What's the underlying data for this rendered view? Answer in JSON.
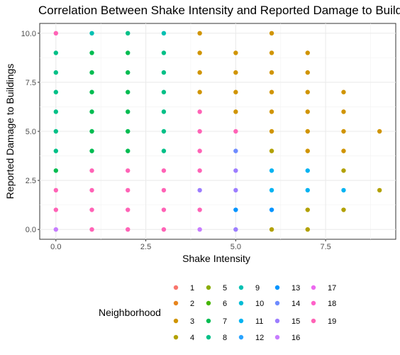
{
  "chart_data": {
    "type": "scatter",
    "title": "Correlation Between Shake Intensity and Reported Damage to Buildings",
    "xlabel": "Shake Intensity",
    "ylabel": "Reported Damage to Buildings",
    "xlim": [
      -0.45,
      9.45
    ],
    "ylim": [
      -0.5,
      10.5
    ],
    "x_ticks": [
      0.0,
      2.5,
      5.0,
      7.5
    ],
    "x_tick_labels": [
      "0.0",
      "2.5",
      "5.0",
      "7.5"
    ],
    "y_ticks": [
      0.0,
      2.5,
      5.0,
      7.5,
      10.0
    ],
    "y_tick_labels": [
      "0.0",
      "2.5",
      "5.0",
      "7.5",
      "10.0"
    ],
    "grid": true,
    "legend": {
      "title": "Neighborhood",
      "placement": "bottom",
      "entries": [
        {
          "label": "1",
          "color": "#F8766D"
        },
        {
          "label": "2",
          "color": "#E7851E"
        },
        {
          "label": "3",
          "color": "#D09400"
        },
        {
          "label": "4",
          "color": "#B2A100"
        },
        {
          "label": "5",
          "color": "#89AC00"
        },
        {
          "label": "6",
          "color": "#45B500"
        },
        {
          "label": "7",
          "color": "#00BC51"
        },
        {
          "label": "8",
          "color": "#00C087"
        },
        {
          "label": "9",
          "color": "#00C0B2"
        },
        {
          "label": "10",
          "color": "#00BCD6"
        },
        {
          "label": "11",
          "color": "#00B3F2"
        },
        {
          "label": "12",
          "color": "#29A3FF"
        },
        {
          "label": "13",
          "color": "#0094FF"
        },
        {
          "label": "14",
          "color": "#6E8BFF"
        },
        {
          "label": "15",
          "color": "#9C7DFF"
        },
        {
          "label": "16",
          "color": "#C77CFF"
        },
        {
          "label": "17",
          "color": "#EC69EF"
        },
        {
          "label": "18",
          "color": "#FF61C9"
        },
        {
          "label": "19",
          "color": "#FF63B6"
        }
      ]
    },
    "points": [
      {
        "x": 0,
        "y": 10,
        "color": "#FF63B6"
      },
      {
        "x": 0,
        "y": 9,
        "color": "#00C087"
      },
      {
        "x": 0,
        "y": 8,
        "color": "#00C087"
      },
      {
        "x": 0,
        "y": 7,
        "color": "#00C087"
      },
      {
        "x": 0,
        "y": 6,
        "color": "#00C087"
      },
      {
        "x": 0,
        "y": 5,
        "color": "#00C087"
      },
      {
        "x": 0,
        "y": 4,
        "color": "#00C087"
      },
      {
        "x": 0,
        "y": 3,
        "color": "#00BC51"
      },
      {
        "x": 0,
        "y": 2,
        "color": "#FF63B6"
      },
      {
        "x": 0,
        "y": 1,
        "color": "#FF63B6"
      },
      {
        "x": 0,
        "y": 0,
        "color": "#C77CFF"
      },
      {
        "x": 1,
        "y": 10,
        "color": "#00C0B2"
      },
      {
        "x": 1,
        "y": 9,
        "color": "#00BC51"
      },
      {
        "x": 1,
        "y": 8,
        "color": "#00BC51"
      },
      {
        "x": 1,
        "y": 7,
        "color": "#00BC51"
      },
      {
        "x": 1,
        "y": 6,
        "color": "#00BC51"
      },
      {
        "x": 1,
        "y": 5,
        "color": "#00BC51"
      },
      {
        "x": 1,
        "y": 4,
        "color": "#00BC51"
      },
      {
        "x": 1,
        "y": 3,
        "color": "#FF63B6"
      },
      {
        "x": 1,
        "y": 2,
        "color": "#FF63B6"
      },
      {
        "x": 1,
        "y": 1,
        "color": "#FF63B6"
      },
      {
        "x": 1,
        "y": 0,
        "color": "#FF63B6"
      },
      {
        "x": 2,
        "y": 10,
        "color": "#00C087"
      },
      {
        "x": 2,
        "y": 9,
        "color": "#00BC51"
      },
      {
        "x": 2,
        "y": 8,
        "color": "#00BC51"
      },
      {
        "x": 2,
        "y": 7,
        "color": "#00BC51"
      },
      {
        "x": 2,
        "y": 6,
        "color": "#00BC51"
      },
      {
        "x": 2,
        "y": 5,
        "color": "#00BC51"
      },
      {
        "x": 2,
        "y": 4,
        "color": "#00BC51"
      },
      {
        "x": 2,
        "y": 3,
        "color": "#FF63B6"
      },
      {
        "x": 2,
        "y": 2,
        "color": "#FF63B6"
      },
      {
        "x": 2,
        "y": 1,
        "color": "#FF63B6"
      },
      {
        "x": 2,
        "y": 0,
        "color": "#FF63B6"
      },
      {
        "x": 3,
        "y": 10,
        "color": "#00C0B2"
      },
      {
        "x": 3,
        "y": 9,
        "color": "#00C087"
      },
      {
        "x": 3,
        "y": 8,
        "color": "#00C087"
      },
      {
        "x": 3,
        "y": 7,
        "color": "#00C087"
      },
      {
        "x": 3,
        "y": 6,
        "color": "#00C087"
      },
      {
        "x": 3,
        "y": 5,
        "color": "#00C087"
      },
      {
        "x": 3,
        "y": 4,
        "color": "#00C087"
      },
      {
        "x": 3,
        "y": 3,
        "color": "#FF63B6"
      },
      {
        "x": 3,
        "y": 2,
        "color": "#FF63B6"
      },
      {
        "x": 3,
        "y": 1,
        "color": "#FF63B6"
      },
      {
        "x": 3,
        "y": 0,
        "color": "#FF63B6"
      },
      {
        "x": 4,
        "y": 10,
        "color": "#D09400"
      },
      {
        "x": 4,
        "y": 9,
        "color": "#D09400"
      },
      {
        "x": 4,
        "y": 8,
        "color": "#D09400"
      },
      {
        "x": 4,
        "y": 7,
        "color": "#D09400"
      },
      {
        "x": 4,
        "y": 6,
        "color": "#FF63B6"
      },
      {
        "x": 4,
        "y": 5,
        "color": "#FF63B6"
      },
      {
        "x": 4,
        "y": 4,
        "color": "#FF63B6"
      },
      {
        "x": 4,
        "y": 3,
        "color": "#FF63B6"
      },
      {
        "x": 4,
        "y": 2,
        "color": "#9C7DFF"
      },
      {
        "x": 4,
        "y": 1,
        "color": "#FF63B6"
      },
      {
        "x": 4,
        "y": 0,
        "color": "#C77CFF"
      },
      {
        "x": 5,
        "y": 9,
        "color": "#D09400"
      },
      {
        "x": 5,
        "y": 8,
        "color": "#D09400"
      },
      {
        "x": 5,
        "y": 7,
        "color": "#D09400"
      },
      {
        "x": 5,
        "y": 6,
        "color": "#D09400"
      },
      {
        "x": 5,
        "y": 5,
        "color": "#FF63B6"
      },
      {
        "x": 5,
        "y": 4,
        "color": "#6E8BFF"
      },
      {
        "x": 5,
        "y": 3,
        "color": "#9C7DFF"
      },
      {
        "x": 5,
        "y": 2,
        "color": "#9C7DFF"
      },
      {
        "x": 5,
        "y": 1,
        "color": "#0094FF"
      },
      {
        "x": 5,
        "y": 0,
        "color": "#9C7DFF"
      },
      {
        "x": 6,
        "y": 10,
        "color": "#D09400"
      },
      {
        "x": 6,
        "y": 9,
        "color": "#D09400"
      },
      {
        "x": 6,
        "y": 8,
        "color": "#D09400"
      },
      {
        "x": 6,
        "y": 7,
        "color": "#D09400"
      },
      {
        "x": 6,
        "y": 6,
        "color": "#D09400"
      },
      {
        "x": 6,
        "y": 5,
        "color": "#D09400"
      },
      {
        "x": 6,
        "y": 4,
        "color": "#B2A100"
      },
      {
        "x": 6,
        "y": 3,
        "color": "#00B3F2"
      },
      {
        "x": 6,
        "y": 2,
        "color": "#00B3F2"
      },
      {
        "x": 6,
        "y": 1,
        "color": "#0094FF"
      },
      {
        "x": 6,
        "y": 0,
        "color": "#B2A100"
      },
      {
        "x": 7,
        "y": 9,
        "color": "#D09400"
      },
      {
        "x": 7,
        "y": 8,
        "color": "#D09400"
      },
      {
        "x": 7,
        "y": 7,
        "color": "#D09400"
      },
      {
        "x": 7,
        "y": 6,
        "color": "#D09400"
      },
      {
        "x": 7,
        "y": 5,
        "color": "#D09400"
      },
      {
        "x": 7,
        "y": 4,
        "color": "#D09400"
      },
      {
        "x": 7,
        "y": 3,
        "color": "#00B3F2"
      },
      {
        "x": 7,
        "y": 2,
        "color": "#00B3F2"
      },
      {
        "x": 7,
        "y": 1,
        "color": "#B2A100"
      },
      {
        "x": 7,
        "y": 0,
        "color": "#B2A100"
      },
      {
        "x": 8,
        "y": 7,
        "color": "#D09400"
      },
      {
        "x": 8,
        "y": 6,
        "color": "#D09400"
      },
      {
        "x": 8,
        "y": 5,
        "color": "#D09400"
      },
      {
        "x": 8,
        "y": 4,
        "color": "#D09400"
      },
      {
        "x": 8,
        "y": 3,
        "color": "#B2A100"
      },
      {
        "x": 8,
        "y": 2,
        "color": "#00B3F2"
      },
      {
        "x": 8,
        "y": 1,
        "color": "#B2A100"
      },
      {
        "x": 9,
        "y": 5,
        "color": "#D09400"
      },
      {
        "x": 9,
        "y": 2,
        "color": "#B2A100"
      }
    ]
  }
}
